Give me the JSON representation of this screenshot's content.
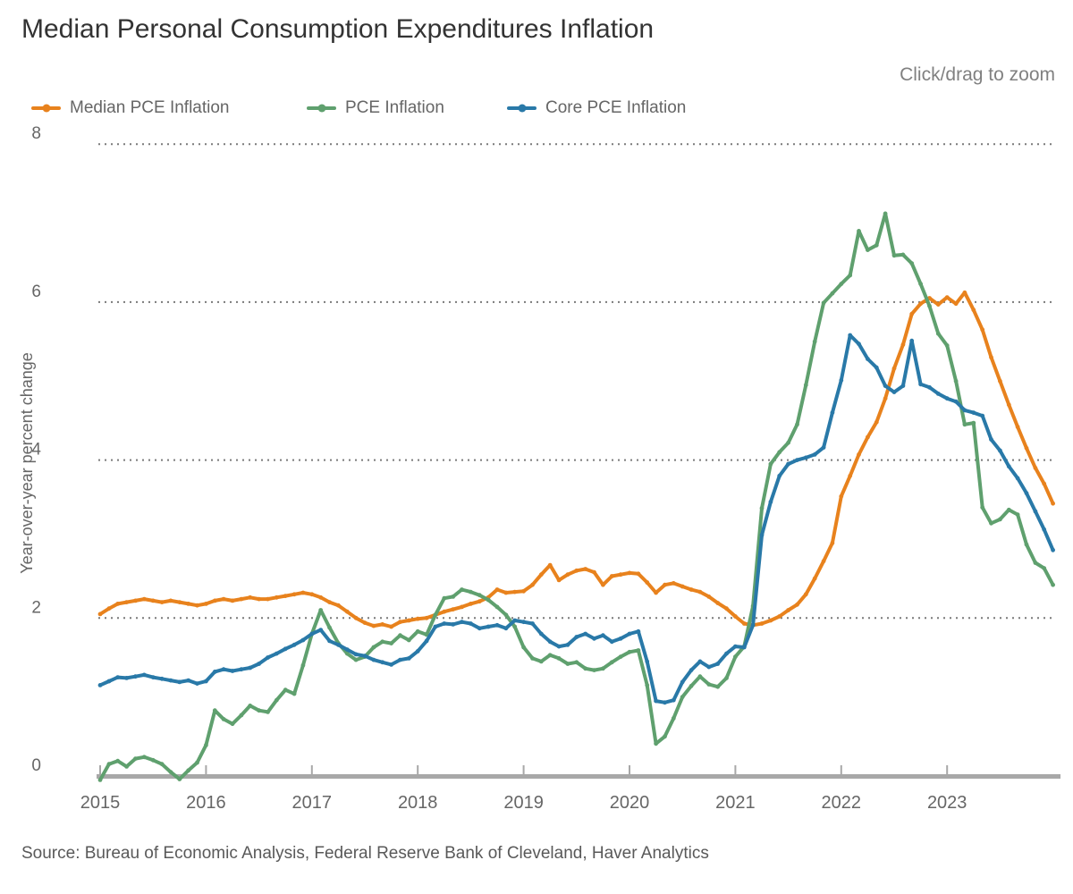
{
  "header": {
    "title": "Median Personal Consumption Expenditures Inflation",
    "zoom_hint": "Click/drag to zoom"
  },
  "footer": {
    "source": "Source: Bureau of Economic Analysis, Federal Reserve Bank of Cleveland, Haver Analytics"
  },
  "colors": {
    "median_pce": "#E8821D",
    "pce": "#5FA06E",
    "core_pce": "#2979A8",
    "title_text": "#333333",
    "label_text": "#666666",
    "hint_text": "#808080",
    "axis_line": "#A8A8A8",
    "gridline": "#7A7A7A"
  },
  "chart_data": {
    "type": "line",
    "title": "Median Personal Consumption Expenditures Inflation",
    "zoom_hint": "Click/drag to zoom",
    "xlabel": "",
    "ylabel": "Year-over-year percent change",
    "x_start": "2015-01",
    "x_end": "2024-01",
    "frequency": "monthly",
    "ylim": [
      0,
      8
    ],
    "grid": "dotted horizontal at 2,4,6,8",
    "legend_position": "top-left",
    "x_axis": {
      "tick_labels": [
        "2015",
        "2016",
        "2017",
        "2018",
        "2019",
        "2020",
        "2021",
        "2022",
        "2023"
      ]
    },
    "y_axis": {
      "ticks": [
        0,
        2,
        4,
        6,
        8
      ]
    },
    "series": [
      {
        "name": "Median PCE Inflation",
        "color": "#E8821D",
        "values": [
          2.05,
          2.12,
          2.18,
          2.2,
          2.22,
          2.24,
          2.22,
          2.2,
          2.22,
          2.2,
          2.18,
          2.16,
          2.18,
          2.22,
          2.24,
          2.22,
          2.24,
          2.26,
          2.24,
          2.24,
          2.26,
          2.28,
          2.3,
          2.32,
          2.3,
          2.26,
          2.2,
          2.16,
          2.08,
          2.0,
          1.94,
          1.9,
          1.92,
          1.89,
          1.95,
          1.97,
          1.99,
          2.0,
          2.04,
          2.08,
          2.11,
          2.14,
          2.18,
          2.21,
          2.26,
          2.36,
          2.32,
          2.33,
          2.34,
          2.42,
          2.55,
          2.67,
          2.48,
          2.55,
          2.6,
          2.62,
          2.58,
          2.42,
          2.53,
          2.55,
          2.57,
          2.56,
          2.45,
          2.32,
          2.42,
          2.44,
          2.4,
          2.36,
          2.33,
          2.27,
          2.19,
          2.12,
          2.02,
          1.93,
          1.91,
          1.93,
          1.97,
          2.02,
          2.1,
          2.17,
          2.3,
          2.5,
          2.72,
          2.95,
          3.54,
          3.8,
          4.07,
          4.29,
          4.48,
          4.78,
          5.16,
          5.46,
          5.85,
          5.98,
          6.05,
          5.97,
          6.06,
          5.98,
          6.12,
          5.9,
          5.65,
          5.3,
          5.0,
          4.7,
          4.42,
          4.15,
          3.9,
          3.7,
          3.45
        ]
      },
      {
        "name": "PCE Inflation",
        "color": "#5FA06E",
        "values": [
          -0.05,
          0.15,
          0.19,
          0.12,
          0.22,
          0.24,
          0.2,
          0.15,
          0.05,
          -0.04,
          0.07,
          0.17,
          0.39,
          0.83,
          0.72,
          0.66,
          0.77,
          0.89,
          0.83,
          0.81,
          0.96,
          1.09,
          1.04,
          1.4,
          1.8,
          2.1,
          1.88,
          1.68,
          1.55,
          1.47,
          1.51,
          1.63,
          1.7,
          1.68,
          1.78,
          1.72,
          1.83,
          1.79,
          2.04,
          2.25,
          2.27,
          2.36,
          2.33,
          2.29,
          2.23,
          2.14,
          2.04,
          1.89,
          1.63,
          1.49,
          1.45,
          1.53,
          1.49,
          1.42,
          1.44,
          1.36,
          1.34,
          1.36,
          1.44,
          1.51,
          1.57,
          1.59,
          1.15,
          0.41,
          0.5,
          0.73,
          1.0,
          1.14,
          1.26,
          1.16,
          1.13,
          1.24,
          1.51,
          1.64,
          2.15,
          3.39,
          3.95,
          4.1,
          4.22,
          4.45,
          4.95,
          5.5,
          5.99,
          6.11,
          6.23,
          6.34,
          6.9,
          6.66,
          6.72,
          7.12,
          6.59,
          6.6,
          6.49,
          6.23,
          5.95,
          5.6,
          5.45,
          5.0,
          4.45,
          4.47,
          3.4,
          3.2,
          3.25,
          3.37,
          3.31,
          2.93,
          2.7,
          2.63,
          2.42
        ]
      },
      {
        "name": "Core PCE Inflation",
        "color": "#2979A8",
        "values": [
          1.15,
          1.2,
          1.25,
          1.24,
          1.26,
          1.28,
          1.25,
          1.23,
          1.21,
          1.19,
          1.21,
          1.17,
          1.2,
          1.32,
          1.35,
          1.33,
          1.35,
          1.37,
          1.42,
          1.5,
          1.55,
          1.61,
          1.66,
          1.72,
          1.8,
          1.85,
          1.71,
          1.66,
          1.6,
          1.54,
          1.52,
          1.47,
          1.44,
          1.41,
          1.47,
          1.49,
          1.58,
          1.71,
          1.89,
          1.93,
          1.92,
          1.95,
          1.93,
          1.87,
          1.89,
          1.91,
          1.87,
          1.97,
          1.95,
          1.93,
          1.8,
          1.7,
          1.64,
          1.66,
          1.76,
          1.8,
          1.74,
          1.78,
          1.7,
          1.74,
          1.8,
          1.83,
          1.45,
          0.95,
          0.93,
          0.96,
          1.19,
          1.34,
          1.45,
          1.38,
          1.42,
          1.55,
          1.64,
          1.63,
          1.91,
          3.05,
          3.47,
          3.8,
          3.95,
          4.0,
          4.03,
          4.07,
          4.16,
          4.6,
          5.01,
          5.58,
          5.47,
          5.28,
          5.17,
          4.94,
          4.86,
          4.94,
          5.51,
          4.96,
          4.92,
          4.84,
          4.78,
          4.74,
          4.63,
          4.6,
          4.56,
          4.26,
          4.12,
          3.92,
          3.77,
          3.58,
          3.35,
          3.12,
          2.86
        ]
      }
    ]
  }
}
